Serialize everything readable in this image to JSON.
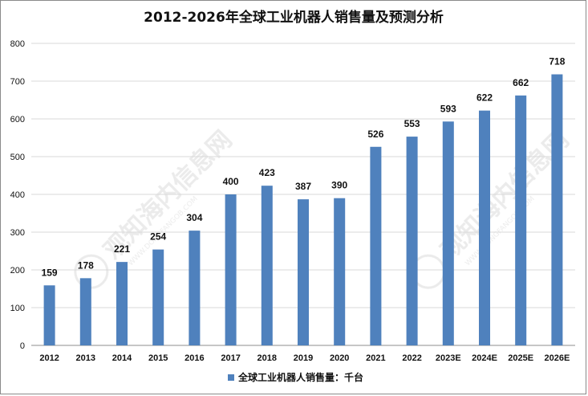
{
  "chart_data": {
    "type": "bar",
    "title": "2012-2026年全球工业机器人销售量及预测分析",
    "categories": [
      "2012",
      "2013",
      "2014",
      "2015",
      "2016",
      "2017",
      "2018",
      "2019",
      "2020",
      "2021",
      "2022",
      "2023E",
      "2024E",
      "2025E",
      "2026E"
    ],
    "series": [
      {
        "name": "全球工业机器人销售量：千台",
        "values": [
          159,
          178,
          221,
          254,
          304,
          400,
          423,
          387,
          390,
          526,
          553,
          593,
          622,
          662,
          718
        ],
        "color": "#4f81bd"
      }
    ],
    "ylim": [
      0,
      800
    ],
    "yticks": [
      0,
      100,
      200,
      300,
      400,
      500,
      600,
      700,
      800
    ],
    "grid": true,
    "legend": "bottom",
    "xlabel": "",
    "ylabel": "",
    "data_labels": true
  },
  "watermark": {
    "text": "观知海内信息网",
    "subtext": "WWW.DONGFANGOB.COM"
  }
}
